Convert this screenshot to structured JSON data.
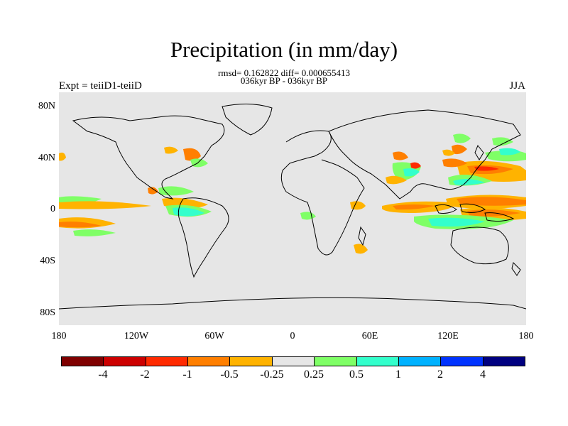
{
  "title": "Precipitation (in mm/day)",
  "subtitle_line1": "rmsd= 0.162822 diff= 0.000655413",
  "subtitle_line2": "036kyr BP - 036kyr BP",
  "left_label": "Expt = teiiD1-teiiD",
  "right_label": "JJA",
  "y_ticks": [
    "80N",
    "40N",
    "0",
    "40S",
    "80S"
  ],
  "x_ticks": [
    "180",
    "120W",
    "60W",
    "0",
    "60E",
    "120E",
    "180"
  ],
  "colorbar": {
    "colors": [
      "#7f0000",
      "#cc0000",
      "#ff2a00",
      "#ff7f00",
      "#ffb300",
      "#e6e6e6",
      "#7fff66",
      "#33ffcc",
      "#00b2ff",
      "#0033ff",
      "#000080"
    ],
    "labels": [
      "-4",
      "-2",
      "-1",
      "-0.5",
      "-0.25",
      "0.25",
      "0.5",
      "1",
      "2",
      "4"
    ]
  }
}
